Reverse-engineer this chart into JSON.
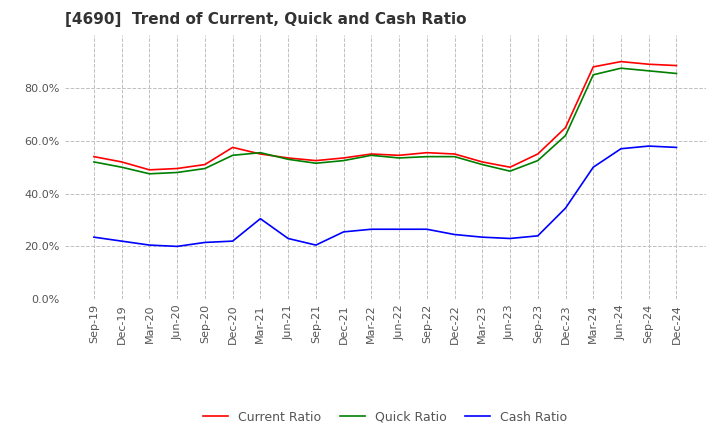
{
  "title": "[4690]  Trend of Current, Quick and Cash Ratio",
  "labels": [
    "Sep-19",
    "Dec-19",
    "Mar-20",
    "Jun-20",
    "Sep-20",
    "Dec-20",
    "Mar-21",
    "Jun-21",
    "Sep-21",
    "Dec-21",
    "Mar-22",
    "Jun-22",
    "Sep-22",
    "Dec-22",
    "Mar-23",
    "Jun-23",
    "Sep-23",
    "Dec-23",
    "Mar-24",
    "Jun-24",
    "Sep-24",
    "Dec-24"
  ],
  "current_ratio": [
    54.0,
    52.0,
    49.0,
    49.5,
    51.0,
    57.5,
    55.0,
    53.5,
    52.5,
    53.5,
    55.0,
    54.5,
    55.5,
    55.0,
    52.0,
    50.0,
    55.0,
    65.0,
    88.0,
    90.0,
    89.0,
    88.5
  ],
  "quick_ratio": [
    52.0,
    50.0,
    47.5,
    48.0,
    49.5,
    54.5,
    55.5,
    53.0,
    51.5,
    52.5,
    54.5,
    53.5,
    54.0,
    54.0,
    51.0,
    48.5,
    52.5,
    62.0,
    85.0,
    87.5,
    86.5,
    85.5
  ],
  "cash_ratio": [
    23.5,
    22.0,
    20.5,
    20.0,
    21.5,
    22.0,
    30.5,
    23.0,
    20.5,
    25.5,
    26.5,
    26.5,
    26.5,
    24.5,
    23.5,
    23.0,
    24.0,
    34.5,
    50.0,
    57.0,
    58.0,
    57.5
  ],
  "current_color": "#ff0000",
  "quick_color": "#008000",
  "cash_color": "#0000ff",
  "ylim": [
    0,
    100
  ],
  "yticks": [
    0,
    20,
    40,
    60,
    80
  ],
  "grid_color": "#c0c0c0",
  "background_color": "#ffffff",
  "title_fontsize": 11,
  "tick_fontsize": 8,
  "legend_labels": [
    "Current Ratio",
    "Quick Ratio",
    "Cash Ratio"
  ]
}
